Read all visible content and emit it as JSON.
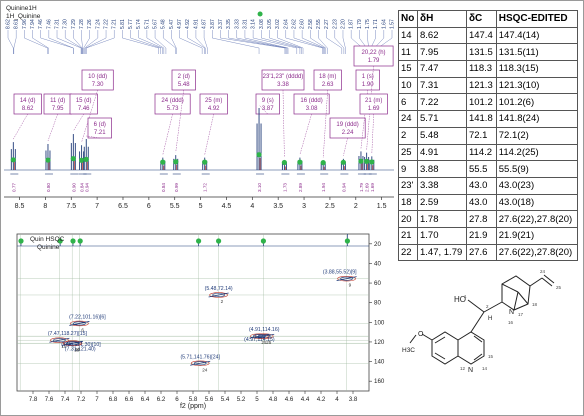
{
  "spectrum_1h": {
    "legend": [
      "Quinine1H",
      "1H_Quinine"
    ],
    "x_axis": {
      "range": [
        8.8,
        1.3
      ],
      "ticks": [
        8.5,
        8.0,
        7.5,
        7.0,
        6.5,
        6.0,
        5.5,
        5.0,
        4.5,
        4.0,
        3.5,
        3.0,
        2.5,
        2.0,
        1.5
      ]
    },
    "multiplets": [
      {
        "label": "14 (d)",
        "shift": "8.62",
        "ppm": 8.62,
        "integral": "0.77",
        "height": 0.45
      },
      {
        "label": "11 (d)",
        "shift": "7.95",
        "ppm": 7.95,
        "integral": "0.80",
        "height": 0.42
      },
      {
        "label": "15 (d)",
        "shift": "7.46",
        "ppm": 7.46,
        "integral": "0.90",
        "height": 0.58
      },
      {
        "label": "10 (dd)",
        "shift": "7.30",
        "ppm": 7.3,
        "integral": "0.84",
        "height": 0.4
      },
      {
        "label": "6 (d)",
        "shift": "7.21",
        "ppm": 7.21,
        "integral": "0.94",
        "height": 0.5
      },
      {
        "label": "24 (ddd)",
        "shift": "5.73",
        "ppm": 5.73,
        "integral": "0.84",
        "height": 0.2
      },
      {
        "label": "2 (d)",
        "shift": "5.48",
        "ppm": 5.48,
        "integral": "0.99",
        "height": 0.24
      },
      {
        "label": "25 (m)",
        "shift": "4.92",
        "ppm": 4.92,
        "integral": "1.72",
        "height": 0.2
      },
      {
        "label": "9 (s)",
        "shift": "3.87",
        "ppm": 3.87,
        "integral": "3.10",
        "height": 1.0
      },
      {
        "label": "23'1,23\" (dddd)",
        "shift": "3.38",
        "ppm": 3.38,
        "integral": "1.73",
        "height": 0.16
      },
      {
        "label": "16 (ddd)",
        "shift": "3.08",
        "ppm": 3.08,
        "integral": "2.89",
        "height": 0.2
      },
      {
        "label": "18 (m)",
        "shift": "2.63",
        "ppm": 2.63,
        "integral": "1.94",
        "height": 0.15
      },
      {
        "label": "19 (ddd)",
        "shift": "2.24",
        "ppm": 2.24,
        "integral": "0.94",
        "height": 0.18
      },
      {
        "label": "1 (s)",
        "shift": "1.90",
        "ppm": 1.9,
        "integral": "1.79",
        "height": 0.3
      },
      {
        "label": "20,22 (h)",
        "shift": "1.79",
        "ppm": 1.79,
        "integral": "2.69",
        "height": 0.28
      },
      {
        "label": "21 (m)",
        "shift": "1.69",
        "ppm": 1.69,
        "integral": "1.69",
        "height": 0.22
      }
    ],
    "peak_list": [
      "8.62",
      "8.61",
      "7.96",
      "7.94",
      "7.46",
      "7.46",
      "7.31",
      "7.30",
      "7.29",
      "7.28",
      "7.26",
      "7.24",
      "7.22",
      "7.21",
      "5.81",
      "5.77",
      "5.74",
      "5.71",
      "5.67",
      "5.48",
      "5.47",
      "4.97",
      "4.92",
      "4.91",
      "4.87",
      "3.87",
      "3.37",
      "3.35",
      "3.33",
      "3.31",
      "3.14",
      "3.08",
      "3.05",
      "3.02",
      "2.64",
      "2.62",
      "2.60",
      "2.58",
      "2.55",
      "2.27",
      "2.23",
      "2.20",
      "1.87",
      "1.79",
      "1.75",
      "1.71",
      "1.64",
      "1.57"
    ]
  },
  "hsqc": {
    "legend": [
      "Quin HSQC",
      "Quinine"
    ],
    "x_axis": {
      "label": "f2 (ppm)",
      "range": [
        8.0,
        3.6
      ],
      "ticks": [
        7.8,
        7.6,
        7.4,
        7.2,
        7.0,
        6.8,
        6.6,
        6.4,
        6.2,
        6.0,
        5.8,
        5.6,
        5.4,
        5.2,
        5.0,
        4.8,
        4.6,
        4.4,
        4.2,
        4.0,
        3.8
      ]
    },
    "y_axis": {
      "range": [
        10,
        170
      ],
      "ticks": [
        20,
        40,
        60,
        80,
        100,
        120,
        140,
        160
      ]
    },
    "cross_peaks": [
      {
        "label": "(3.88,55.52)[9]",
        "h": 3.88,
        "c": 55.52,
        "num": "9"
      },
      {
        "label": "(5.48,72.14)",
        "h": 5.48,
        "c": 72.14,
        "num": "2"
      },
      {
        "label": "(7.22,101.16)[6]",
        "h": 7.22,
        "c": 101.16,
        "num": "6"
      },
      {
        "label": "(7.47,118.27)[15]",
        "h": 7.47,
        "c": 118.27,
        "num": "15"
      },
      {
        "label": "(7.31,121.40)",
        "h": 7.31,
        "c": 121.4,
        "num": "10"
      },
      {
        "label": "(7.30,121.30)[10]",
        "h": 7.3,
        "c": 121.3,
        "num": "10"
      },
      {
        "label": "(4.91,114.16)",
        "h": 4.91,
        "c": 114.16,
        "num": "25"
      },
      {
        "label": "(4.97,114.15)",
        "h": 4.97,
        "c": 114.15,
        "num": "25"
      },
      {
        "label": "(5.71,141.76)[24]",
        "h": 5.71,
        "c": 141.76,
        "num": "24"
      }
    ]
  },
  "table": {
    "headers": [
      "No",
      "δH",
      "δC",
      "HSQC-EDITED"
    ],
    "rows": [
      [
        "14",
        "8.62",
        "147.4",
        "147.4(14)"
      ],
      [
        "11",
        "7.95",
        "131.5",
        "131.5(11)"
      ],
      [
        "15",
        "7.47",
        "118.3",
        "118.3(15)"
      ],
      [
        "10",
        "7.31",
        "121.3",
        "121.3(10)"
      ],
      [
        "6",
        "7.22",
        "101.2",
        "101.2(6)"
      ],
      [
        "24",
        "5.71",
        "141.8",
        "141.8(24)"
      ],
      [
        "2",
        "5.48",
        "72.1",
        "72.1(2)"
      ],
      [
        "25",
        "4.91",
        "114.2",
        "114.2(25)"
      ],
      [
        "9",
        "3.88",
        "55.5",
        "55.5(9)"
      ],
      [
        "23'",
        "3.38",
        "43.0",
        "43.0(23)"
      ],
      [
        "18",
        "2.59",
        "43.0",
        "43.0(18)"
      ],
      [
        "20",
        "1.78",
        "27.8",
        "27.6(22),27.8(20)"
      ],
      [
        "21",
        "1.70",
        "21.9",
        "21.9(21)"
      ],
      [
        "22",
        "1.47, 1.79",
        "27.6",
        "27.6(22),27.8(20)"
      ]
    ]
  },
  "structure": {
    "atoms": [
      "HO",
      "N",
      "N",
      "H",
      "H3C",
      "O",
      "24",
      "25",
      "17",
      "18",
      "16",
      "14",
      "15",
      "12",
      "2",
      "1"
    ]
  },
  "colors": {
    "spectrum_line": "#1f3a78",
    "label_box": "#8b2a8b",
    "peak_green": "#2fb34a",
    "hsqc_pos": "#1f3a78",
    "hsqc_neg": "#c0392b"
  }
}
